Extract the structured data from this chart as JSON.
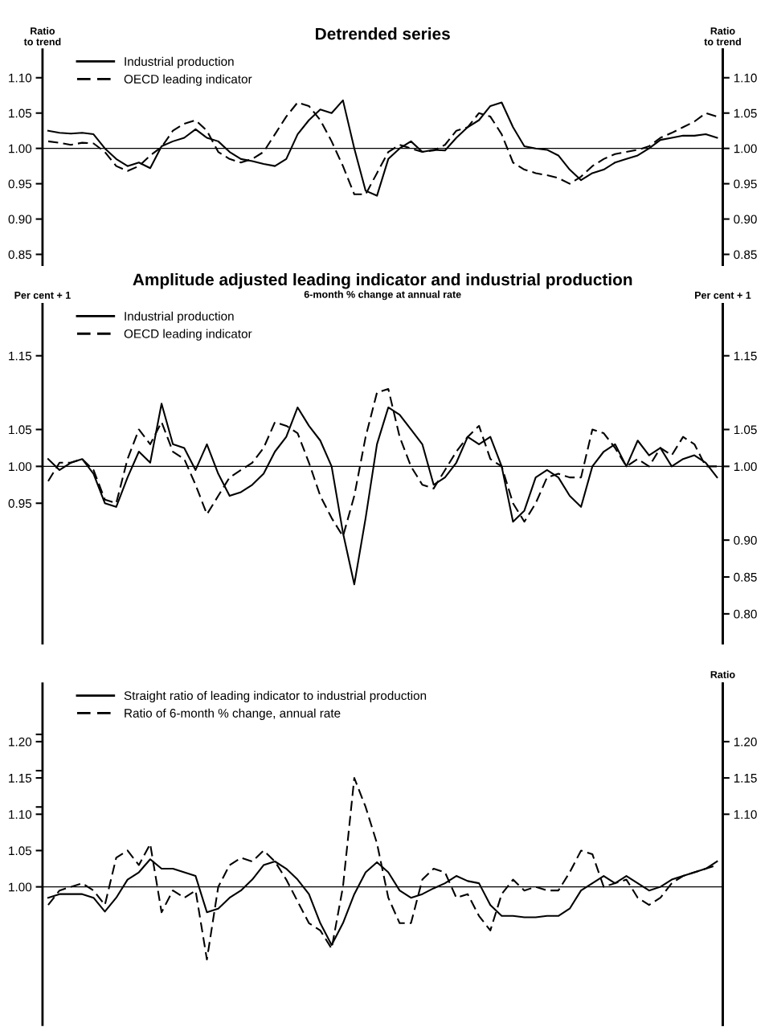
{
  "chart_data": [
    {
      "type": "line",
      "title": "Detrended series",
      "ylabel": "Ratio\nto trend",
      "y2label": "Ratio\nto trend",
      "categories": [
        null,
        null,
        null,
        null,
        null,
        null,
        null,
        null,
        null,
        null,
        null,
        null,
        null,
        null,
        null,
        null,
        null,
        null,
        null,
        null,
        null,
        null,
        null,
        null,
        null,
        null,
        null,
        null,
        null,
        null,
        null,
        null,
        null,
        null,
        null,
        null,
        null,
        null,
        null,
        null,
        null,
        null,
        null,
        null,
        null,
        null,
        null,
        null,
        null,
        null,
        null,
        null,
        null,
        null,
        null,
        null,
        null,
        null,
        null,
        null
      ],
      "ylim": [
        0.835,
        1.14
      ],
      "yticks": [
        {
          "value": 1.1,
          "label": "1.10"
        },
        {
          "value": 1.05,
          "label": "1.05"
        },
        {
          "value": 1.0,
          "label": "1.00"
        },
        {
          "value": 0.95,
          "label": "0.95"
        },
        {
          "value": 0.9,
          "label": "0.90"
        },
        {
          "value": 0.85,
          "label": "0.85"
        }
      ],
      "y2lim": [
        0.835,
        1.14
      ],
      "y2ticks": [
        {
          "value": 1.1,
          "label": "1.10"
        },
        {
          "value": 1.05,
          "label": "1.05"
        },
        {
          "value": 1.0,
          "label": "1.00"
        },
        {
          "value": 0.95,
          "label": "0.95"
        },
        {
          "value": 0.9,
          "label": "0.90"
        },
        {
          "value": 0.85,
          "label": "0.85"
        }
      ],
      "tick_labels": "y",
      "grid": false,
      "legend": "top left",
      "ref_lines": [
        {
          "axis": "y",
          "value": 1.0,
          "label": null,
          "color": "#000000",
          "line_style": "solid"
        }
      ],
      "series": [
        {
          "name": "Industrial production",
          "color": "#000000",
          "line_style": "solid",
          "values": [
            1.025,
            1.022,
            1.021,
            1.022,
            1.02,
            1.0,
            0.985,
            0.975,
            0.98,
            0.972,
            1.003,
            1.01,
            1.015,
            1.027,
            1.015,
            1.01,
            0.995,
            0.985,
            0.982,
            0.978,
            0.975,
            0.985,
            1.02,
            1.04,
            1.055,
            1.05,
            1.068,
            1.0,
            0.94,
            0.933,
            0.985,
            1.0,
            1.01,
            0.995,
            0.998,
            0.997,
            1.015,
            1.03,
            1.04,
            1.06,
            1.065,
            1.03,
            1.003,
            1.0,
            0.998,
            0.99,
            0.97,
            0.955,
            0.965,
            0.97,
            0.98,
            0.985,
            0.99,
            1.0,
            1.012,
            1.015,
            1.018,
            1.018,
            1.02,
            1.015
          ]
        },
        {
          "name": "OECD leading indicator",
          "color": "#000000",
          "line_style": "dashed",
          "values": [
            1.01,
            1.008,
            1.005,
            1.008,
            1.007,
            0.995,
            0.975,
            0.968,
            0.975,
            0.99,
            1.002,
            1.025,
            1.035,
            1.04,
            1.025,
            0.995,
            0.985,
            0.98,
            0.985,
            0.995,
            1.02,
            1.045,
            1.065,
            1.06,
            1.04,
            1.01,
            0.975,
            0.935,
            0.935,
            0.965,
            0.995,
            1.005,
            1.0,
            0.995,
            0.997,
            1.005,
            1.025,
            1.03,
            1.05,
            1.045,
            1.02,
            0.98,
            0.97,
            0.965,
            0.962,
            0.958,
            0.95,
            0.96,
            0.975,
            0.985,
            0.992,
            0.995,
            0.998,
            1.003,
            1.015,
            1.022,
            1.03,
            1.038,
            1.05,
            1.045
          ]
        }
      ]
    },
    {
      "type": "line",
      "title": "Amplitude adjusted leading indicator and industrial production",
      "subtitle": "6-month % change at annual rate",
      "ylabel": "Per cent + 1",
      "y2label": "Per cent + 1",
      "categories": [
        null,
        null,
        null,
        null,
        null,
        null,
        null,
        null,
        null,
        null,
        null,
        null,
        null,
        null,
        null,
        null,
        null,
        null,
        null,
        null,
        null,
        null,
        null,
        null,
        null,
        null,
        null,
        null,
        null,
        null,
        null,
        null,
        null,
        null,
        null,
        null,
        null,
        null,
        null,
        null,
        null,
        null,
        null,
        null,
        null,
        null,
        null,
        null,
        null,
        null,
        null,
        null,
        null,
        null,
        null,
        null,
        null,
        null,
        null,
        null
      ],
      "ylim": [
        0.76,
        1.22
      ],
      "yticks": [
        {
          "value": 1.15,
          "label": "1.15"
        },
        {
          "value": 1.05,
          "label": "1.05"
        },
        {
          "value": 1.0,
          "label": "1.00"
        },
        {
          "value": 0.95,
          "label": "0.95"
        }
      ],
      "y2lim": [
        0.76,
        1.22
      ],
      "y2ticks": [
        {
          "value": 1.15,
          "label": "1.15"
        },
        {
          "value": 1.05,
          "label": "1.05"
        },
        {
          "value": 1.0,
          "label": "1.00"
        },
        {
          "value": 0.9,
          "label": "0.90"
        },
        {
          "value": 0.85,
          "label": "0.85"
        },
        {
          "value": 0.8,
          "label": "0.80"
        }
      ],
      "tick_labels": "y",
      "grid": false,
      "legend": "top left",
      "ref_lines": [
        {
          "axis": "y",
          "value": 1.0,
          "label": null,
          "color": "#000000",
          "line_style": "solid"
        }
      ],
      "series": [
        {
          "name": "Industrial production",
          "color": "#000000",
          "line_style": "solid",
          "values": [
            1.01,
            0.995,
            1.005,
            1.01,
            0.99,
            0.95,
            0.945,
            0.985,
            1.02,
            1.005,
            1.085,
            1.03,
            1.025,
            0.995,
            1.03,
            0.99,
            0.96,
            0.965,
            0.975,
            0.99,
            1.02,
            1.04,
            1.08,
            1.055,
            1.035,
            1.0,
            0.91,
            0.84,
            0.93,
            1.03,
            1.08,
            1.07,
            1.05,
            1.03,
            0.975,
            0.985,
            1.005,
            1.04,
            1.03,
            1.04,
            1.0,
            0.925,
            0.94,
            0.985,
            0.995,
            0.985,
            0.96,
            0.945,
            1.0,
            1.02,
            1.03,
            1.0,
            1.035,
            1.015,
            1.025,
            1.0,
            1.01,
            1.015,
            1.005,
            0.985
          ]
        },
        {
          "name": "OECD leading indicator",
          "color": "#000000",
          "line_style": "dashed",
          "values": [
            0.98,
            1.005,
            1.005,
            1.01,
            0.995,
            0.955,
            0.95,
            1.01,
            1.05,
            1.03,
            1.06,
            1.02,
            1.01,
            0.975,
            0.935,
            0.96,
            0.985,
            0.995,
            1.005,
            1.025,
            1.06,
            1.055,
            1.045,
            1.005,
            0.96,
            0.93,
            0.905,
            0.96,
            1.04,
            1.1,
            1.105,
            1.04,
            1.0,
            0.975,
            0.97,
            0.995,
            1.02,
            1.04,
            1.055,
            1.01,
            1.0,
            0.95,
            0.925,
            0.95,
            0.985,
            0.99,
            0.985,
            0.985,
            1.05,
            1.045,
            1.025,
            1.0,
            1.01,
            1.0,
            1.025,
            1.015,
            1.04,
            1.03,
            1.0,
            1.0
          ]
        }
      ]
    },
    {
      "type": "line",
      "y2label": "Ratio",
      "categories": [
        null,
        null,
        null,
        null,
        null,
        null,
        null,
        null,
        null,
        null,
        null,
        null,
        null,
        null,
        null,
        null,
        null,
        null,
        null,
        null,
        null,
        null,
        null,
        null,
        null,
        null,
        null,
        null,
        null,
        null,
        null,
        null,
        null,
        null,
        null,
        null,
        null,
        null,
        null,
        null,
        null,
        null,
        null,
        null,
        null,
        null,
        null,
        null,
        null,
        null,
        null,
        null,
        null,
        null,
        null,
        null,
        null,
        null,
        null,
        null
      ],
      "ylim": [
        0.81,
        1.28
      ],
      "yticks": [
        {
          "value": 1.21,
          "label": null
        },
        {
          "value": 1.2,
          "label": "1.20"
        },
        {
          "value": 1.16,
          "label": null
        },
        {
          "value": 1.15,
          "label": "1.15"
        },
        {
          "value": 1.11,
          "label": null
        },
        {
          "value": 1.1,
          "label": "1.10"
        },
        {
          "value": 1.05,
          "label": "1.05"
        },
        {
          "value": 1.0,
          "label": "1.00"
        }
      ],
      "y2lim": [
        0.81,
        1.28
      ],
      "y2ticks": [
        {
          "value": 1.2,
          "label": "1.20"
        },
        {
          "value": 1.15,
          "label": "1.15"
        },
        {
          "value": 1.1,
          "label": "1.10"
        }
      ],
      "tick_labels": "y",
      "grid": false,
      "legend": "top left",
      "ref_lines": [
        {
          "axis": "y",
          "value": 1.0,
          "label": null,
          "color": "#000000",
          "line_style": "solid"
        }
      ],
      "series": [
        {
          "name": "Straight ratio of leading indicator to industrial production",
          "color": "#000000",
          "line_style": "solid",
          "values": [
            0.985,
            0.99,
            0.99,
            0.99,
            0.985,
            0.966,
            0.985,
            1.01,
            1.02,
            1.038,
            1.025,
            1.025,
            1.02,
            1.015,
            0.965,
            0.97,
            0.985,
            0.995,
            1.01,
            1.03,
            1.035,
            1.025,
            1.01,
            0.99,
            0.95,
            0.92,
            0.95,
            0.99,
            1.02,
            1.034,
            1.02,
            0.995,
            0.985,
            0.99,
            0.998,
            1.005,
            1.015,
            1.008,
            1.005,
            0.975,
            0.96,
            0.96,
            0.958,
            0.958,
            0.96,
            0.96,
            0.97,
            0.995,
            1.005,
            1.015,
            1.005,
            1.015,
            1.005,
            0.995,
            1.0,
            1.01,
            1.015,
            1.02,
            1.025,
            1.035
          ]
        },
        {
          "name": "Ratio of 6-month % change, annual rate",
          "color": "#000000",
          "line_style": "dashed",
          "values": [
            0.975,
            0.995,
            1.0,
            1.005,
            0.995,
            0.975,
            1.04,
            1.05,
            1.03,
            1.059,
            0.965,
            0.995,
            0.985,
            0.995,
            0.9,
            1.0,
            1.03,
            1.04,
            1.035,
            1.05,
            1.035,
            1.01,
            0.98,
            0.95,
            0.94,
            0.915,
            1.0,
            1.15,
            1.11,
            1.06,
            0.985,
            0.95,
            0.95,
            1.01,
            1.025,
            1.02,
            0.985,
            0.99,
            0.96,
            0.94,
            0.99,
            1.01,
            0.995,
            1.0,
            0.995,
            0.995,
            1.02,
            1.05,
            1.045,
            1.0,
            1.005,
            1.01,
            0.985,
            0.975,
            0.985,
            1.005,
            1.015,
            1.02,
            1.025,
            1.03
          ]
        }
      ]
    }
  ]
}
